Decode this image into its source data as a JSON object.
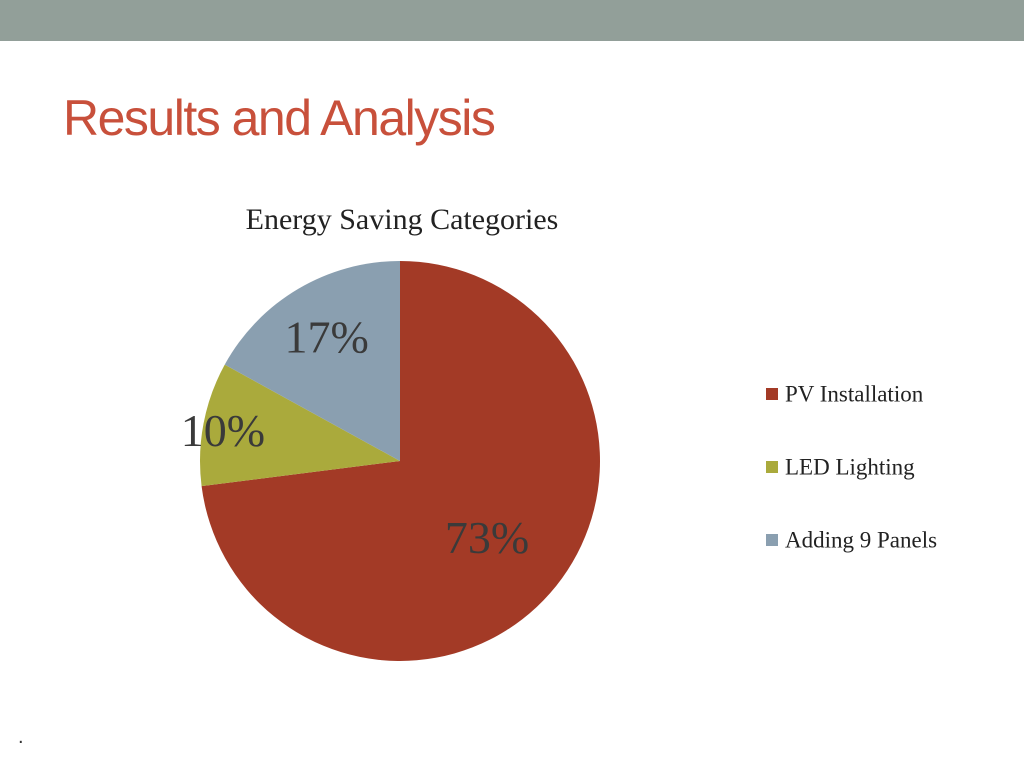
{
  "slide": {
    "title": "Results and Analysis",
    "title_color": "#c8503b",
    "header_bar_color": "#929f99",
    "footer_text": "."
  },
  "chart_data": {
    "type": "pie",
    "title": "Energy Saving Categories",
    "categories": [
      "PV Installation",
      "LED Lighting",
      "Adding 9 Panels"
    ],
    "values": [
      73,
      10,
      17
    ],
    "labels": [
      "73%",
      "10%",
      "17%"
    ],
    "colors": [
      "#a33a26",
      "#aaaa3c",
      "#8a9fb0"
    ],
    "legend_position": "right",
    "start_angle_deg": 0,
    "direction": "clockwise"
  }
}
